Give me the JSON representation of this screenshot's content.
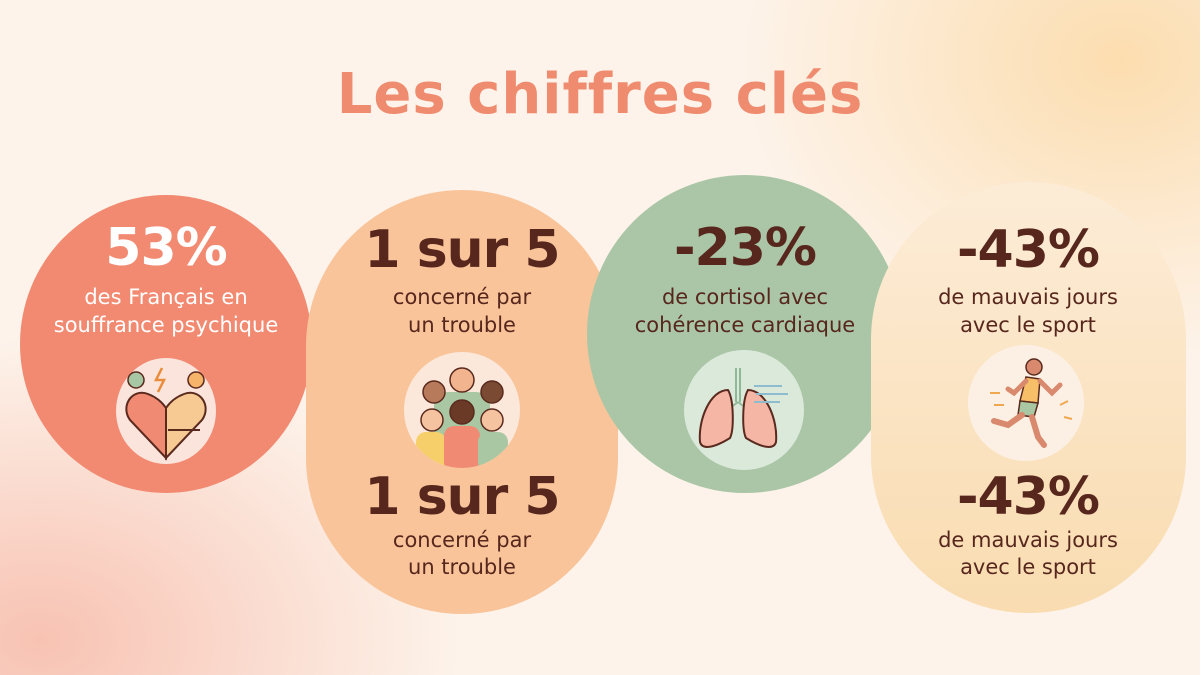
{
  "title": "Les chiffres clés",
  "colors": {
    "title": "#ef8b6f",
    "coral": "#f28a72",
    "peach": "#f9c49a",
    "sage": "#aac6a6",
    "cream": "#fbe3c0",
    "text_dark": "#57271e"
  },
  "cards": [
    {
      "value": "53%",
      "line1": "des Français en",
      "line2": "souffrance psychique",
      "icon": "heart-emotions-icon"
    },
    {
      "value": "1 sur 5",
      "line1": "concerné par",
      "line2": "un trouble",
      "icon": "group-people-icon",
      "value2": "1 sur 5",
      "line3": "concerné par",
      "line4": "un trouble"
    },
    {
      "value": "-23%",
      "line1": "de cortisol avec",
      "line2": "cohérence cardiaque",
      "icon": "lungs-breath-icon"
    },
    {
      "value": "-43%",
      "line1": "de mauvais jours",
      "line2": "avec le sport",
      "icon": "runner-icon",
      "value2": "-43%",
      "line3": "de mauvais jours",
      "line4": "avec le sport"
    }
  ]
}
